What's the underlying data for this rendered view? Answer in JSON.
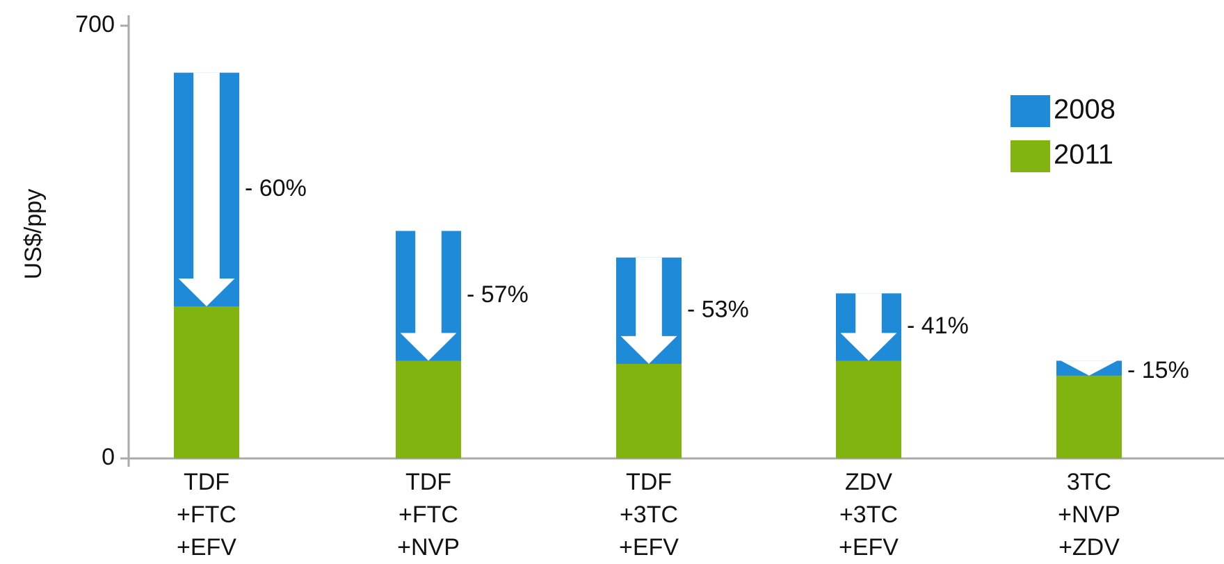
{
  "chart_data": {
    "type": "bar",
    "y_label": "US$/ppy",
    "categories": [
      [
        "TDF",
        "+FTC",
        "+EFV"
      ],
      [
        "TDF",
        "+FTC",
        "+NVP"
      ],
      [
        "TDF",
        "+3TC",
        "+EFV"
      ],
      [
        "ZDV",
        "+3TC",
        "+EFV"
      ],
      [
        "3TC",
        "+NVP",
        "+ZDV"
      ]
    ],
    "series": [
      {
        "name": "2008",
        "color": "#1f8ad8",
        "values": [
          624,
          368,
          325,
          267,
          158
        ]
      },
      {
        "name": "2011",
        "color": "#82b40f",
        "values": [
          246,
          158,
          153,
          158,
          134
        ]
      }
    ],
    "change_labels": [
      "- 60%",
      "- 57%",
      "- 53%",
      "- 41%",
      "- 15%"
    ],
    "ylim": [
      0,
      700
    ],
    "yticks": [
      0,
      700
    ],
    "legend": "upper right"
  }
}
